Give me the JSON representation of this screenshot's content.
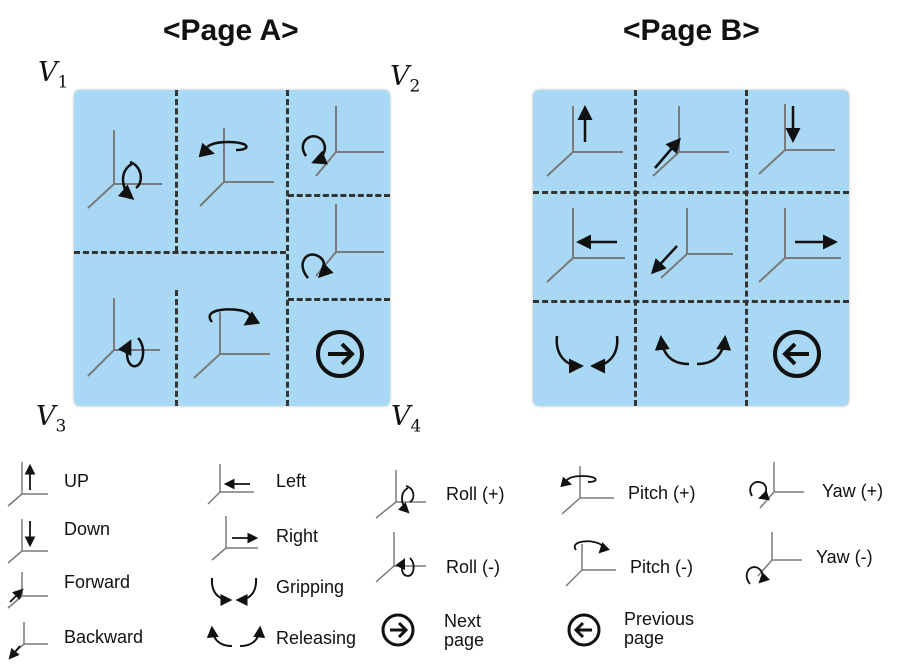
{
  "pages": {
    "a_title": "<Page A>",
    "b_title": "<Page B>"
  },
  "vertices": {
    "v1": {
      "base": "V",
      "sub": "1"
    },
    "v2": {
      "base": "V",
      "sub": "2"
    },
    "v3": {
      "base": "V",
      "sub": "3"
    },
    "v4": {
      "base": "V",
      "sub": "4"
    }
  },
  "page_a": {
    "cells": [
      "roll-plus-icon",
      "pitch-plus-icon",
      "yaw-plus-icon",
      "yaw-minus-icon",
      "roll-minus-icon",
      "pitch-minus-icon",
      "next-page-icon"
    ]
  },
  "page_b": {
    "cells": [
      "up-icon",
      "forward-icon",
      "down-icon",
      "left-icon",
      "backward-icon",
      "right-icon",
      "gripping-icon",
      "releasing-icon",
      "previous-page-icon"
    ]
  },
  "legend": {
    "up": "UP",
    "down": "Down",
    "forward": "Forward",
    "backward": "Backward",
    "left": "Left",
    "right": "Right",
    "gripping": "Gripping",
    "releasing": "Releasing",
    "roll_plus": "Roll (+)",
    "roll_minus": "Roll (-)",
    "next_line1": "Next",
    "next_line2": "page",
    "pitch_plus": "Pitch (+)",
    "pitch_minus": "Pitch (-)",
    "prev_line1": "Previous",
    "prev_line2": "page",
    "yaw_plus": "Yaw (+)",
    "yaw_minus": "Yaw (-)"
  }
}
